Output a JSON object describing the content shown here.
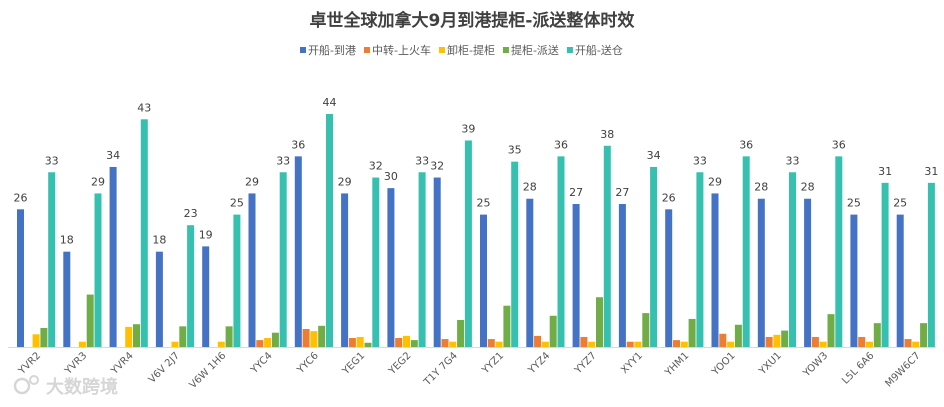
{
  "chart_data": {
    "type": "bar",
    "title": "卓世全球加拿大9月到港提柜-派送整体时效",
    "xlabel": "",
    "ylabel": "",
    "ylim": [
      0,
      46
    ],
    "grid": false,
    "legend_position": "top",
    "categories": [
      "YVR2",
      "YVR3",
      "YVR4",
      "V6V 2J7",
      "V6W 1H6",
      "YYC4",
      "YYC6",
      "YEG1",
      "YEG2",
      "T1Y 7G4",
      "YYZ1",
      "YYZ4",
      "YYZ7",
      "XYY1",
      "YHM1",
      "YOO1",
      "YXU1",
      "YOW3",
      "L5L 6A6",
      "M9W6C7"
    ],
    "series": [
      {
        "name": "开船-到港",
        "color": "#4472C4",
        "labels": true,
        "values": [
          26,
          18,
          34,
          18,
          19,
          29,
          36,
          29,
          30,
          32,
          25,
          28,
          27,
          27,
          26,
          29,
          28,
          28,
          25,
          25
        ]
      },
      {
        "name": "中转-上火车",
        "color": "#ED7D31",
        "labels": false,
        "values": [
          0,
          0,
          0,
          0,
          0,
          1.3,
          3.4,
          1.7,
          1.7,
          1.5,
          1.5,
          2.1,
          1.9,
          1,
          1.3,
          2.5,
          1.9,
          1.9,
          1.9,
          1.5
        ]
      },
      {
        "name": "卸柜-提柜",
        "color": "#FFC000",
        "labels": false,
        "values": [
          2.4,
          1,
          3.8,
          1,
          1,
          1.7,
          3,
          1.9,
          2.1,
          1,
          1,
          1,
          1,
          1,
          1,
          1,
          2.3,
          1,
          1,
          1
        ]
      },
      {
        "name": "提柜-派送",
        "color": "#70AD47",
        "labels": false,
        "values": [
          3.6,
          9.9,
          4.3,
          3.9,
          3.9,
          2.7,
          4,
          0.8,
          1.3,
          5.1,
          7.8,
          5.9,
          9.4,
          6.4,
          5.3,
          4.2,
          3.1,
          6.2,
          4.5,
          4.5
        ]
      },
      {
        "name": "开船-送仓",
        "color": "#36C0B0",
        "labels": true,
        "values": [
          33,
          29,
          43,
          23,
          25,
          33,
          44,
          32,
          33,
          39,
          35,
          36,
          38,
          34,
          33,
          36,
          33,
          36,
          31,
          31
        ]
      }
    ]
  },
  "watermark": "大数跨境"
}
